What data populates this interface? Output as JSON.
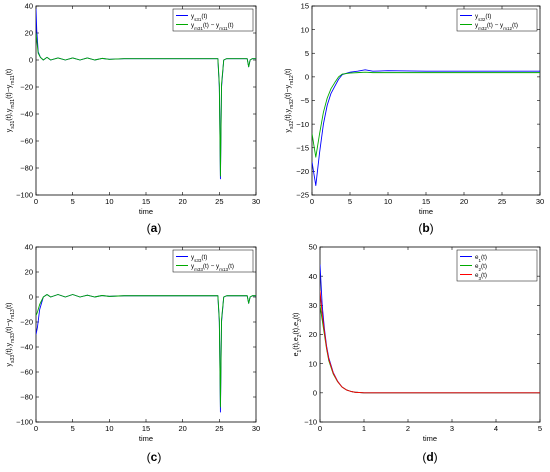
{
  "chart_data": [
    {
      "type": "line",
      "caption": "(a)",
      "xlabel": "time",
      "ylabel": "y_{s31}(t),y_{m31}(t)−y_{m11}(t)",
      "xlim": [
        0,
        30
      ],
      "ylim": [
        -100,
        40
      ],
      "xticks": [
        0,
        5,
        10,
        15,
        20,
        25,
        30
      ],
      "yticks": [
        -100,
        -80,
        -60,
        -40,
        -20,
        0,
        20,
        40
      ],
      "grid": false,
      "legend_position": "top-right",
      "legend": [
        "y_{s31}(t)",
        "y_{m31}(t) − y_{m11}(t)"
      ],
      "series": [
        {
          "name": "y_{s31}(t)",
          "color": "#0000ff",
          "x": [
            0,
            0.1,
            0.3,
            0.6,
            1,
            1.5,
            2,
            3,
            4,
            5,
            6,
            7,
            8,
            9,
            10,
            12,
            15,
            20,
            24.8,
            25.0,
            25.15,
            25.3,
            25.6,
            26,
            28.8,
            29.0,
            29.2,
            29.5,
            30
          ],
          "y": [
            38,
            22,
            6,
            2,
            0,
            2,
            0,
            1.5,
            0,
            1.5,
            0,
            1.5,
            0,
            1.2,
            0.5,
            1,
            1,
            1,
            1,
            -20,
            -88,
            -20,
            0,
            1,
            1,
            -5,
            0,
            1,
            1
          ]
        },
        {
          "name": "y_{m31}(t) − y_{m11}(t)",
          "color": "#00aa00",
          "x": [
            0,
            0.1,
            0.3,
            0.6,
            1,
            1.5,
            2,
            3,
            4,
            5,
            6,
            7,
            8,
            9,
            10,
            12,
            15,
            20,
            24.8,
            25.0,
            25.15,
            25.3,
            25.6,
            26,
            28.8,
            29.0,
            29.2,
            29.5,
            30
          ],
          "y": [
            20,
            15,
            5,
            2,
            0,
            2,
            0,
            1.5,
            0,
            1.5,
            0,
            1.5,
            0,
            1.2,
            0.5,
            1,
            1,
            1,
            1,
            -18,
            -86,
            -18,
            0,
            1,
            1,
            -5,
            0,
            1,
            1
          ]
        }
      ]
    },
    {
      "type": "line",
      "caption": "(b)",
      "xlabel": "time",
      "ylabel": "y_{s32}(t),y_{m32}(t)−y_{m12}(t)",
      "xlim": [
        0,
        30
      ],
      "ylim": [
        -25,
        15
      ],
      "xticks": [
        0,
        5,
        10,
        15,
        20,
        25,
        30
      ],
      "yticks": [
        -25,
        -20,
        -15,
        -10,
        -5,
        0,
        5,
        10,
        15
      ],
      "grid": false,
      "legend_position": "top-right",
      "legend": [
        "y_{s32}(t)",
        "y_{m32}(t) − y_{m12}(t)"
      ],
      "series": [
        {
          "name": "y_{s32}(t)",
          "color": "#0000ff",
          "x": [
            0,
            0.5,
            1,
            1.5,
            2,
            2.5,
            3,
            3.5,
            4,
            5,
            6,
            7,
            8,
            10,
            15,
            20,
            25,
            30
          ],
          "y": [
            -18,
            -23,
            -16,
            -10,
            -6,
            -3.5,
            -2,
            -0.5,
            0.5,
            1,
            1.2,
            1.5,
            1.2,
            1.3,
            1.2,
            1.2,
            1.2,
            1.2
          ]
        },
        {
          "name": "y_{m32}(t) − y_{m12}(t)",
          "color": "#00aa00",
          "x": [
            0,
            0.5,
            1,
            1.5,
            2,
            2.5,
            3,
            3.5,
            4,
            5,
            6,
            7,
            8,
            10,
            15,
            20,
            25,
            30
          ],
          "y": [
            -12,
            -17,
            -12,
            -7.5,
            -4.5,
            -2.5,
            -1.2,
            0,
            0.6,
            0.8,
            0.9,
            1,
            0.9,
            0.9,
            0.9,
            0.9,
            0.9,
            0.9
          ]
        }
      ]
    },
    {
      "type": "line",
      "caption": "(c)",
      "xlabel": "time",
      "ylabel": "y_{s33}(t),y_{m33}(t)−y_{m13}(t)",
      "xlim": [
        0,
        30
      ],
      "ylim": [
        -100,
        40
      ],
      "xticks": [
        0,
        5,
        10,
        15,
        20,
        25,
        30
      ],
      "yticks": [
        -100,
        -80,
        -60,
        -40,
        -20,
        0,
        20,
        40
      ],
      "grid": false,
      "legend_position": "top-right",
      "legend": [
        "y_{s33}(t)",
        "y_{m33}(t) − y_{m13}(t)"
      ],
      "series": [
        {
          "name": "y_{s33}(t)",
          "color": "#0000ff",
          "x": [
            0,
            0.2,
            0.5,
            1,
            1.5,
            2,
            3,
            4,
            5,
            6,
            7,
            8,
            9,
            10,
            12,
            15,
            20,
            24.8,
            25.0,
            25.15,
            25.3,
            25.6,
            26,
            28.8,
            29.0,
            29.2,
            29.5,
            30
          ],
          "y": [
            -30,
            -24,
            -10,
            0,
            2,
            0,
            2,
            0,
            2,
            0,
            1.5,
            0,
            1.2,
            0.5,
            1,
            1,
            1,
            1,
            -20,
            -92,
            -20,
            0,
            1,
            1,
            -5,
            0,
            1,
            1
          ]
        },
        {
          "name": "y_{m33}(t) − y_{m13}(t)",
          "color": "#00aa00",
          "x": [
            0,
            0.2,
            0.5,
            1,
            1.5,
            2,
            3,
            4,
            5,
            6,
            7,
            8,
            9,
            10,
            12,
            15,
            20,
            24.8,
            25.0,
            25.15,
            25.3,
            25.6,
            26,
            28.8,
            29.0,
            29.2,
            29.5,
            30
          ],
          "y": [
            -15,
            -12,
            -6,
            0,
            2,
            0,
            2,
            0,
            2,
            0,
            1.5,
            0,
            1.2,
            0.5,
            1,
            1,
            1,
            1,
            -18,
            -88,
            -18,
            0,
            1,
            1,
            -5,
            0,
            1,
            1
          ]
        }
      ]
    },
    {
      "type": "line",
      "caption": "(d)",
      "xlabel": "time",
      "ylabel": "e_1(t),e_2(t),e_3(t)",
      "xlim": [
        0,
        5
      ],
      "ylim": [
        -10,
        50
      ],
      "xticks": [
        0,
        1,
        2,
        3,
        4,
        5
      ],
      "yticks": [
        -10,
        0,
        10,
        20,
        30,
        40,
        50
      ],
      "grid": false,
      "legend_position": "top-right",
      "legend": [
        "e_1(t)",
        "e_2(t)",
        "e_3(t)"
      ],
      "series": [
        {
          "name": "e_1(t)",
          "color": "#0000ff",
          "x": [
            0,
            0.05,
            0.1,
            0.15,
            0.2,
            0.3,
            0.4,
            0.5,
            0.6,
            0.7,
            0.8,
            1,
            1.5,
            2,
            3,
            4,
            5
          ],
          "y": [
            44,
            30,
            22,
            16,
            12,
            7,
            4,
            2,
            1,
            0.5,
            0.2,
            0,
            0,
            0,
            0,
            0,
            0
          ]
        },
        {
          "name": "e_2(t)",
          "color": "#00aa00",
          "x": [
            0,
            0.05,
            0.1,
            0.15,
            0.2,
            0.3,
            0.4,
            0.5,
            0.6,
            0.7,
            0.8,
            1,
            1.5,
            2,
            3,
            4,
            5
          ],
          "y": [
            30,
            25,
            20,
            15,
            11,
            6.5,
            3.8,
            2,
            1,
            0.5,
            0.2,
            0,
            0,
            0,
            0,
            0,
            0
          ]
        },
        {
          "name": "e_3(t)",
          "color": "#ff0000",
          "x": [
            0,
            0.05,
            0.1,
            0.15,
            0.2,
            0.3,
            0.4,
            0.5,
            0.6,
            0.7,
            0.8,
            1,
            1.5,
            2,
            3,
            4,
            5
          ],
          "y": [
            35,
            27,
            21,
            15.5,
            11.5,
            6.8,
            3.9,
            2,
            1,
            0.5,
            0.2,
            0,
            0,
            0,
            0,
            0,
            0
          ]
        }
      ]
    }
  ]
}
